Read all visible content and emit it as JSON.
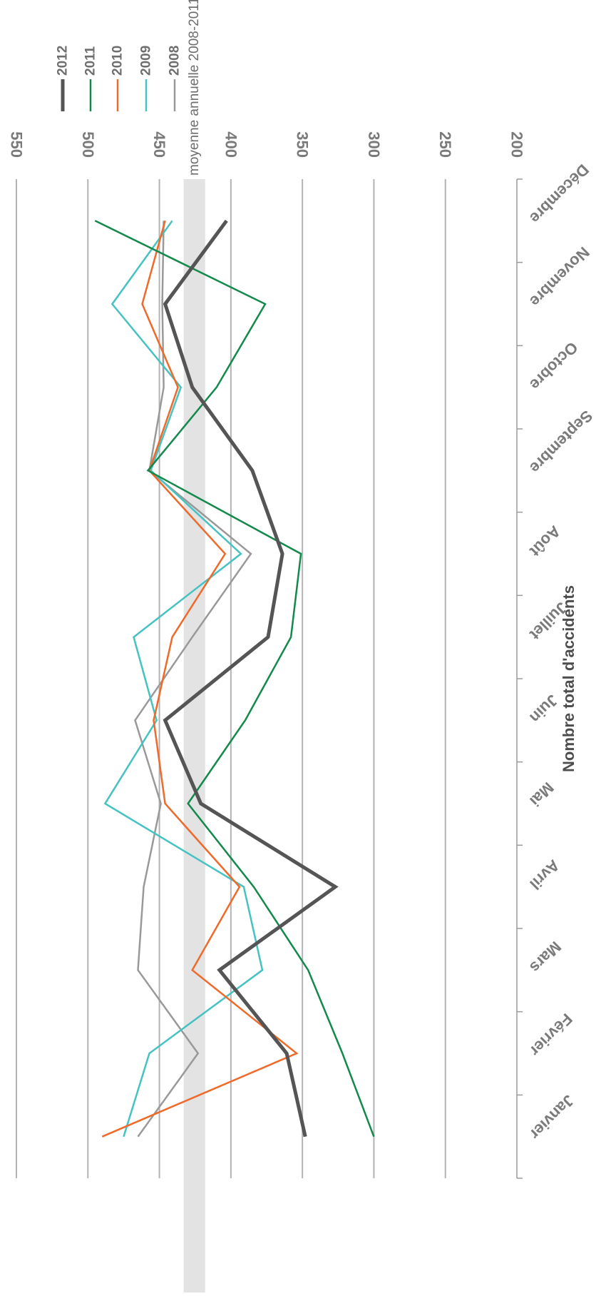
{
  "chart_data": {
    "type": "line",
    "orientation": "rotated-180",
    "ylabel": "Nombre total d'accidents",
    "ylim": [
      200,
      550
    ],
    "yticks": [
      200,
      250,
      300,
      350,
      400,
      450,
      500,
      550
    ],
    "grid": true,
    "legend_position": "top-right",
    "categories": [
      "Janvier",
      "Février",
      "Mars",
      "Avril",
      "Mai",
      "Juin",
      "Juillet",
      "Août",
      "Septembre",
      "Octobre",
      "Novembre",
      "Décembre"
    ],
    "band": {
      "label": "moyenne annuelle 2008-2011",
      "range": [
        418,
        433
      ],
      "color": "#e3e3e3"
    },
    "series": [
      {
        "name": "2008",
        "color": "#999999",
        "width": 2.5,
        "values": [
          465,
          423,
          465,
          461,
          449,
          467,
          427,
          386,
          457,
          447,
          448,
          447
        ]
      },
      {
        "name": "2009",
        "color": "#45c2c2",
        "width": 2.5,
        "values": [
          475,
          457,
          378,
          391,
          488,
          452,
          468,
          393,
          456,
          435,
          483,
          441
        ]
      },
      {
        "name": "2010",
        "color": "#ef6a2a",
        "width": 2.5,
        "values": [
          490,
          354,
          427,
          394,
          446,
          454,
          441,
          404,
          457,
          437,
          462,
          446
        ]
      },
      {
        "name": "2011",
        "color": "#138a4b",
        "width": 2.5,
        "values": [
          300,
          322,
          346,
          384,
          430,
          390,
          358,
          351,
          458,
          410,
          376,
          495
        ]
      },
      {
        "name": "2012",
        "color": "#555555",
        "width": 5,
        "values": [
          348,
          361,
          408,
          327,
          421,
          446,
          374,
          364,
          385,
          427,
          446,
          403
        ]
      }
    ]
  }
}
